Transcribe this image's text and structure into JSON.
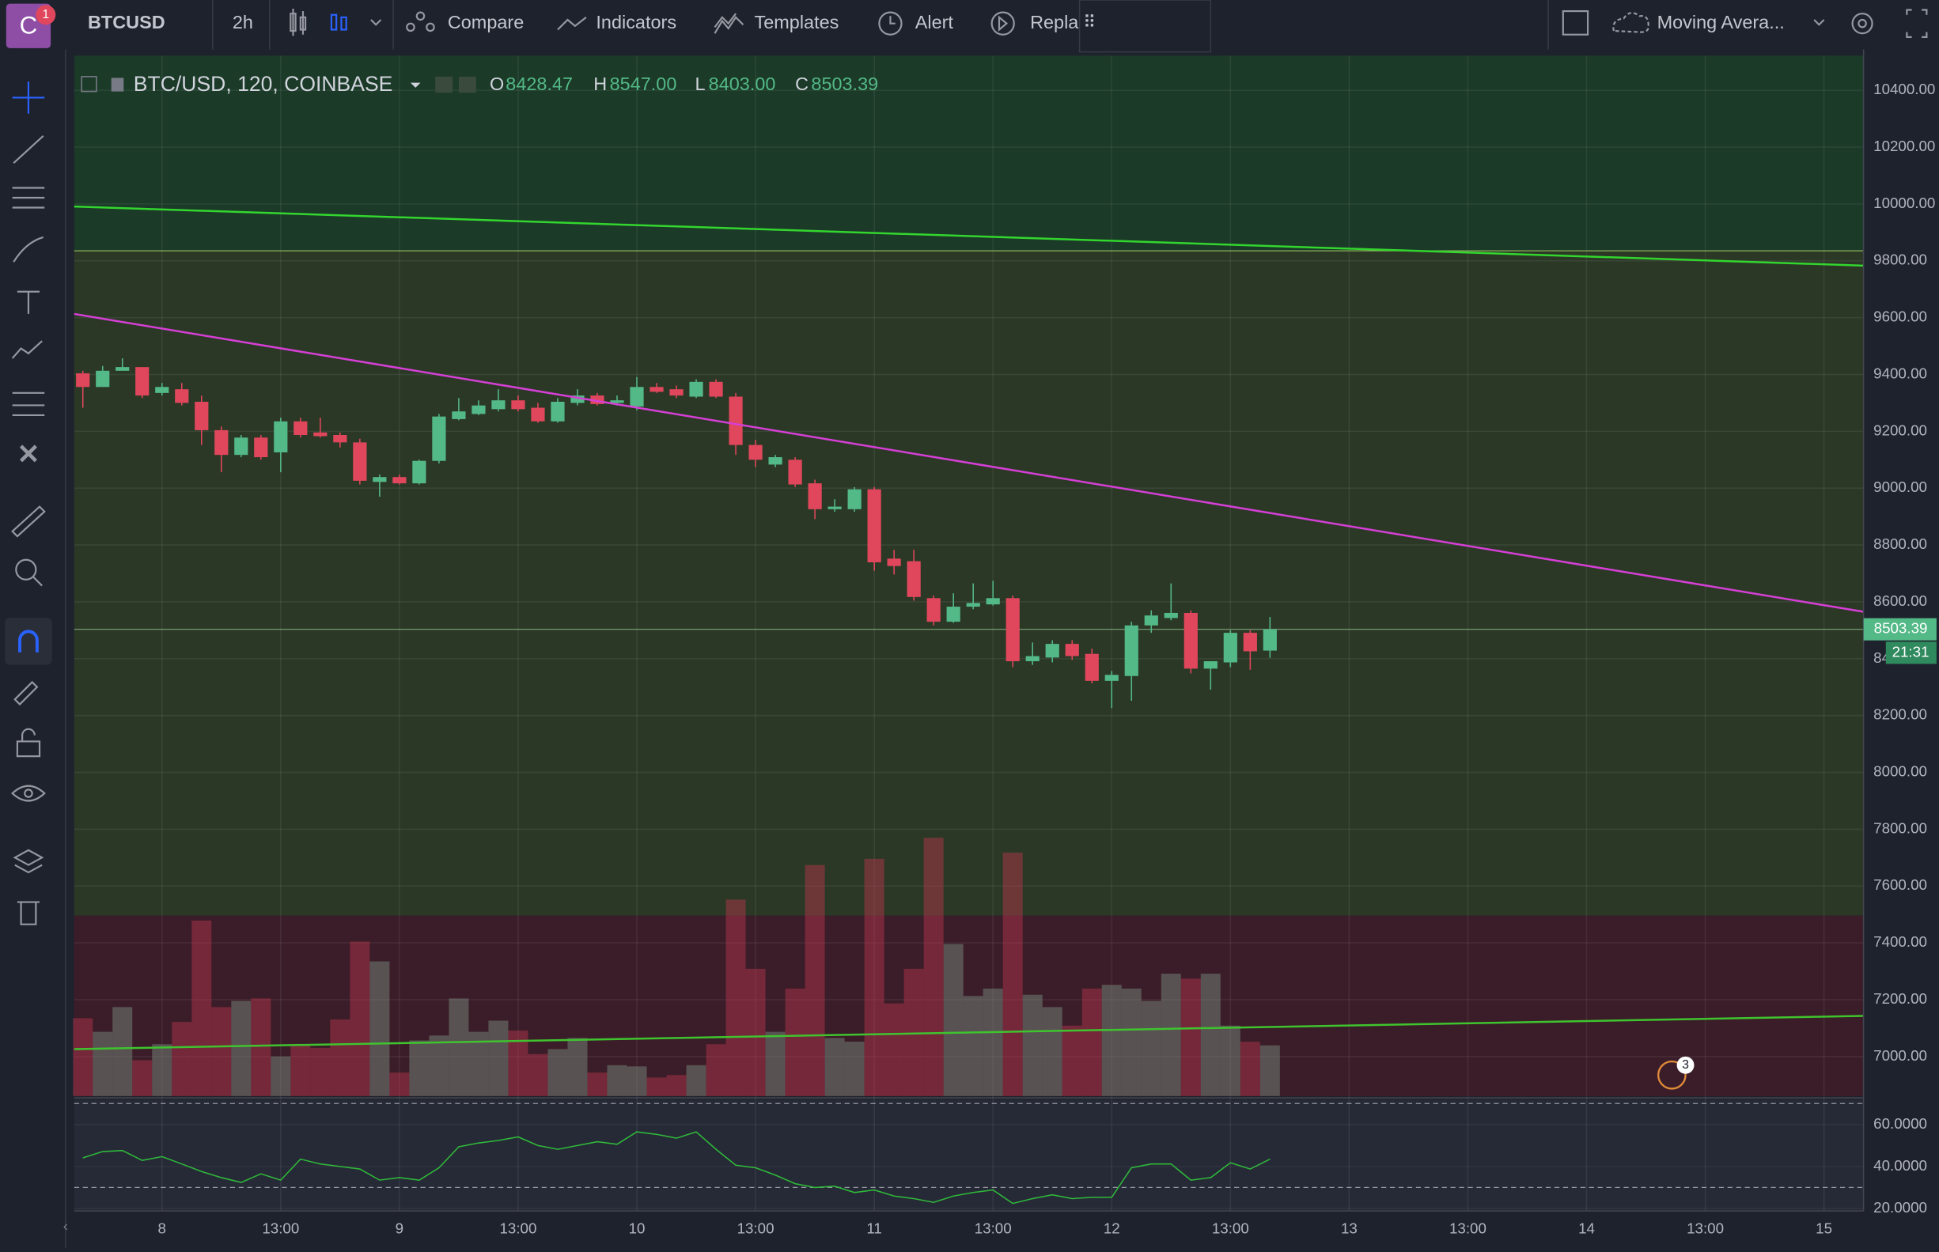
{
  "toolbar": {
    "symbol": "BTCUSD",
    "interval": "2h",
    "items": [
      "Compare",
      "Indicators",
      "Templates",
      "Alert",
      "Repla"
    ],
    "indicator_menu": "Moving Avera...",
    "notification": "1"
  },
  "legend": {
    "title": "BTC/USD, 120, COINBASE",
    "o_label": "O",
    "open": "8428.47",
    "h_label": "H",
    "high": "8547.00",
    "l_label": "L",
    "low": "8403.00",
    "c_label": "C",
    "close": "8503.39"
  },
  "countdown": "21:31",
  "badge": "3",
  "chart_data": {
    "type": "candlestick",
    "x": [
      0,
      2,
      4,
      6,
      8,
      10,
      12,
      14,
      16,
      18,
      20,
      22,
      24,
      26,
      28,
      30,
      32,
      34,
      36,
      38,
      40,
      42,
      44,
      46,
      48,
      50,
      52,
      54,
      56,
      58,
      60,
      62,
      64,
      66,
      68,
      70,
      72,
      74,
      76,
      78,
      80,
      82,
      84,
      86,
      88,
      90,
      92,
      94,
      96,
      98,
      100,
      102,
      104,
      106,
      108,
      110,
      112,
      114,
      116,
      118,
      120
    ],
    "open": [
      9404,
      9356,
      9413,
      9426,
      9335,
      9348,
      9304,
      9204,
      9117,
      9178,
      9126,
      9235,
      9196,
      9187,
      9161,
      9022,
      9039,
      9017,
      9096,
      9243,
      9261,
      9278,
      9309,
      9283,
      9235,
      9300,
      9326,
      9300,
      9287,
      9356,
      9348,
      9322,
      9374,
      9322,
      9152,
      9083,
      9100,
      9017,
      8926,
      8926,
      8996,
      8752,
      8743,
      8613,
      8530,
      8583,
      8591,
      8613,
      8391,
      8404,
      8452,
      8417,
      8322,
      8339,
      8517,
      8543,
      8561,
      8365,
      8387,
      8491,
      8428.47
    ],
    "high": [
      9413,
      9430,
      9457,
      9426,
      9370,
      9370,
      9326,
      9217,
      9187,
      9187,
      9248,
      9248,
      9248,
      9196,
      9174,
      9048,
      9048,
      9100,
      9261,
      9317,
      9309,
      9348,
      9326,
      9300,
      9317,
      9348,
      9335,
      9326,
      9391,
      9370,
      9361,
      9383,
      9383,
      9335,
      9170,
      9117,
      9109,
      9030,
      8961,
      9004,
      9004,
      8783,
      8783,
      8622,
      8630,
      8665,
      8674,
      8622,
      8457,
      8465,
      8465,
      8435,
      8357,
      8530,
      8570,
      8665,
      8570,
      8378,
      8500,
      8500,
      8547
    ],
    "low": [
      9283,
      9356,
      9413,
      9317,
      9326,
      9291,
      9152,
      9056,
      9109,
      9100,
      9056,
      9178,
      9178,
      9143,
      9013,
      8970,
      9013,
      9013,
      9087,
      9239,
      9257,
      9270,
      9270,
      9230,
      9230,
      9291,
      9291,
      9291,
      9274,
      9335,
      9317,
      9317,
      9317,
      9117,
      9074,
      9074,
      9004,
      8891,
      8917,
      8917,
      8709,
      8696,
      8604,
      8517,
      8526,
      8574,
      8587,
      8370,
      8378,
      8387,
      8396,
      8313,
      8226,
      8252,
      8491,
      8535,
      8348,
      8291,
      8370,
      8361,
      8403
    ],
    "close": [
      9356,
      9413,
      9426,
      9326,
      9356,
      9300,
      9204,
      9117,
      9178,
      9109,
      9235,
      9187,
      9183,
      9161,
      9026,
      9039,
      9017,
      9096,
      9252,
      9270,
      9291,
      9309,
      9278,
      9235,
      9304,
      9326,
      9296,
      9309,
      9356,
      9339,
      9326,
      9374,
      9322,
      9152,
      9100,
      9109,
      9013,
      8926,
      8935,
      8996,
      8739,
      8726,
      8617,
      8530,
      8583,
      8596,
      8613,
      8391,
      8409,
      8452,
      8409,
      8322,
      8343,
      8517,
      8552,
      8561,
      8365,
      8391,
      8491,
      8426,
      8503.39
    ],
    "volume": [
      63,
      52,
      72,
      29,
      42,
      60,
      142,
      72,
      77,
      79,
      32,
      42,
      39,
      62,
      125,
      109,
      19,
      45,
      49,
      79,
      52,
      61,
      53,
      34,
      38,
      47,
      19,
      25,
      24,
      15,
      17,
      25,
      42,
      159,
      103,
      52,
      87,
      187,
      47,
      44,
      192,
      75,
      103,
      209,
      123,
      81,
      87,
      197,
      82,
      72,
      57,
      87,
      90,
      87,
      77,
      99,
      95,
      99,
      57,
      44,
      41
    ],
    "rsi": [
      44.1,
      47.1,
      47.6,
      42.9,
      44.7,
      41.2,
      37.6,
      34.7,
      32.4,
      36.5,
      33.5,
      43.5,
      41.2,
      40,
      38.8,
      33.5,
      34.7,
      33.5,
      39.4,
      49.4,
      51.2,
      52.4,
      54.1,
      50,
      48.2,
      50,
      51.8,
      50.6,
      56.5,
      55.3,
      53.5,
      56.5,
      48.2,
      40.6,
      39.4,
      35.9,
      31.8,
      30,
      30.6,
      27.6,
      28.8,
      25.9,
      24.7,
      22.9,
      25.9,
      27.6,
      28.8,
      22.4,
      24.7,
      26.5,
      24.7,
      25.3,
      25.3,
      39.4,
      41.2,
      41.2,
      33.5,
      34.7,
      41.8,
      38.8,
      43.5
    ],
    "xlim": [
      -0.875,
      180
    ],
    "xticks": [
      8,
      {
        "value": 20,
        "label": "13:00"
      },
      {
        "value": 32,
        "label": "9"
      },
      {
        "value": 44,
        "label": "13:00"
      },
      {
        "value": 56,
        "label": "10"
      },
      {
        "value": 68,
        "label": "13:00"
      },
      {
        "value": 80,
        "label": "11"
      },
      {
        "value": 92,
        "label": "13:00"
      },
      {
        "value": 104,
        "label": "12"
      },
      {
        "value": 116,
        "label": "13:00"
      },
      {
        "value": 128,
        "label": "13"
      },
      {
        "value": 140,
        "label": "13:00"
      },
      {
        "value": 152,
        "label": "14"
      },
      {
        "value": 164,
        "label": "13:00"
      },
      {
        "value": 176,
        "label": "15"
      }
    ],
    "ylim": [
      6861,
      10522
    ],
    "yticks": [
      {
        "value": 10400,
        "label": "10400.00"
      },
      {
        "value": 10200,
        "label": "10200.00"
      },
      {
        "value": 10000,
        "label": "10000.00"
      },
      {
        "value": 9800,
        "label": "9800.00"
      },
      {
        "value": 9600,
        "label": "9600.00"
      },
      {
        "value": 9400,
        "label": "9400.00"
      },
      {
        "value": 9200,
        "label": "9200.00"
      },
      {
        "value": 9000,
        "label": "9000.00"
      },
      {
        "value": 8800,
        "label": "8800.00"
      },
      {
        "value": 8600,
        "label": "8600.00"
      },
      {
        "value": 8400,
        "label": "8400.00"
      },
      {
        "value": 8200,
        "label": "8200.00"
      },
      {
        "value": 8000,
        "label": "8000.00"
      },
      {
        "value": 7800,
        "label": "7800.00"
      },
      {
        "value": 7600,
        "label": "7600.00"
      },
      {
        "value": 7400,
        "label": "7400.00"
      },
      {
        "value": 7200,
        "label": "7200.00"
      },
      {
        "value": 7000,
        "label": "7000.00"
      }
    ],
    "rsi_ylim": [
      18.8,
      71.8
    ],
    "rsi_yticks": [
      {
        "value": 60,
        "label": "60.0000"
      },
      {
        "value": 40,
        "label": "40.0000"
      },
      {
        "value": 20,
        "label": "20.0000"
      }
    ],
    "rsi_levels": [
      70,
      30
    ],
    "zones": [
      {
        "from": 9835,
        "to": 10522,
        "color": "#1b3a28"
      },
      {
        "from": 7496,
        "to": 9835,
        "color": "#2b3826"
      },
      {
        "from": 6861,
        "to": 7496,
        "color": "#3a1d28"
      }
    ],
    "levels": [
      9835
    ],
    "trendlines": [
      {
        "x": [
          -0.875,
          180
        ],
        "y": [
          9991,
          9783
        ],
        "color": "#33d62e"
      },
      {
        "x": [
          -0.875,
          180
        ],
        "y": [
          9613,
          8565
        ],
        "color": "#d63fd6"
      },
      {
        "x": [
          -0.875,
          180
        ],
        "y": [
          7026,
          7143
        ],
        "color": "#3fc42e"
      }
    ],
    "up_color": "#53b987",
    "down_color": "#e0475c",
    "volume_up_color": "rgba(120,135,125,0.5)",
    "volume_down_color": "rgba(190,55,80,0.45)",
    "rsi_color": "#2fb83a",
    "grid": true
  }
}
